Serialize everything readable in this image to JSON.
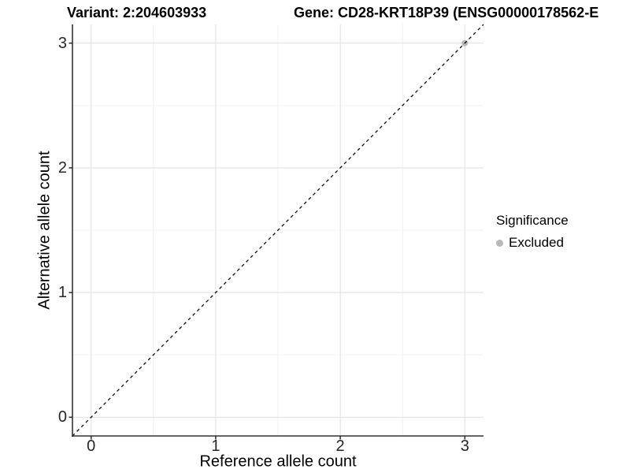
{
  "header": {
    "variant_title": "Variant: 2:204603933",
    "gene_title": "Gene: CD28-KRT18P39 (ENSG00000178562-E"
  },
  "legend": {
    "title": "Significance",
    "items": [
      {
        "label": "Excluded",
        "color": "#b8b8b8"
      }
    ]
  },
  "chart_data": {
    "type": "scatter",
    "xlabel": "Reference allele count",
    "ylabel": "Alternative allele count",
    "xlim": [
      -0.15,
      3.15
    ],
    "ylim": [
      -0.15,
      3.15
    ],
    "x_ticks": [
      0,
      1,
      2,
      3
    ],
    "y_ticks": [
      0,
      1,
      2,
      3
    ],
    "x_minor_ticks": [
      0.5,
      1.5,
      2.5
    ],
    "y_minor_ticks": [
      0.5,
      1.5,
      2.5
    ],
    "grid": "major+minor",
    "legend_position": "right",
    "series": [
      {
        "name": "Excluded",
        "color": "#b8b8b8",
        "points": [
          [
            3,
            3
          ]
        ]
      }
    ],
    "reference_line": {
      "slope": 1,
      "intercept": 0,
      "style": "dashed",
      "color": "#000000"
    }
  },
  "colors": {
    "background": "#ffffff",
    "axis": "#333333",
    "grid_major": "#e2e2e2",
    "grid_minor": "#f0f0f0",
    "tick_text": "#262626"
  }
}
